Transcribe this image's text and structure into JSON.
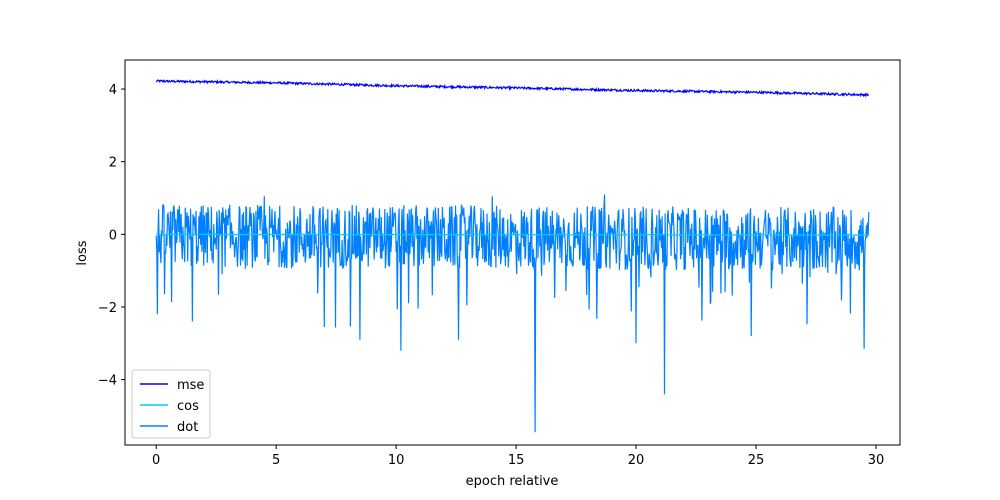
{
  "chart_data": {
    "type": "line",
    "title": "",
    "xlabel": "epoch relative",
    "ylabel": "loss",
    "xlim": [
      -1.3,
      31.0
    ],
    "ylim": [
      -5.8,
      4.8
    ],
    "x_ticks": [
      0,
      5,
      10,
      15,
      20,
      25,
      30
    ],
    "x_tick_labels": [
      "0",
      "5",
      "10",
      "15",
      "20",
      "25",
      "30"
    ],
    "y_ticks": [
      -4,
      -2,
      0,
      2,
      4
    ],
    "y_tick_labels": [
      "−4",
      "−2",
      "0",
      "2",
      "4"
    ],
    "grid": false,
    "legend_position": "lower-left",
    "x_range": [
      0,
      29.7
    ],
    "series": [
      {
        "name": "mse",
        "color": "#0000ff",
        "trend": [
          [
            0,
            4.22
          ],
          [
            5,
            4.17
          ],
          [
            10,
            4.09
          ],
          [
            15,
            4.03
          ],
          [
            20,
            3.96
          ],
          [
            25,
            3.91
          ],
          [
            29.7,
            3.84
          ]
        ],
        "noise_amplitude": 0.03
      },
      {
        "name": "cos",
        "color": "#00ccff",
        "trend": [
          [
            0,
            0.0
          ],
          [
            29.7,
            -0.02
          ]
        ],
        "noise_amplitude": 0.005
      },
      {
        "name": "dot",
        "color": "#0080ff",
        "trend": [
          [
            0,
            0.05
          ],
          [
            29.7,
            -0.05
          ]
        ],
        "noise_amplitude": 0.55,
        "notable_points": [
          {
            "x": 0.05,
            "y": -2.2
          },
          {
            "x": 1.5,
            "y": -2.4
          },
          {
            "x": 7.0,
            "y": -2.55
          },
          {
            "x": 8.5,
            "y": -2.9
          },
          {
            "x": 10.2,
            "y": -3.2
          },
          {
            "x": 12.6,
            "y": -2.9
          },
          {
            "x": 15.8,
            "y": -5.45
          },
          {
            "x": 20.0,
            "y": -3.0
          },
          {
            "x": 21.2,
            "y": -4.4
          },
          {
            "x": 24.8,
            "y": -2.8
          },
          {
            "x": 29.5,
            "y": -3.15
          },
          {
            "x": 18.7,
            "y": 1.1
          },
          {
            "x": 4.5,
            "y": 1.05
          },
          {
            "x": 14.0,
            "y": 1.05
          }
        ]
      }
    ]
  }
}
